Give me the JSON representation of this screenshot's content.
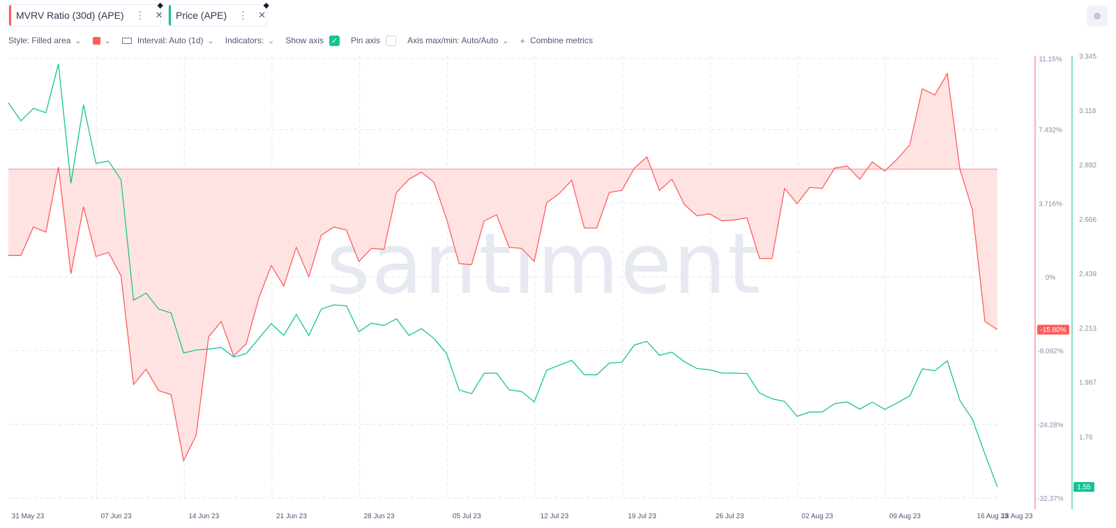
{
  "metrics": [
    {
      "label": "MVRV Ratio (30d) (APE)",
      "color": "#ff5b5b"
    },
    {
      "label": "Price (APE)",
      "color": "#14c393"
    }
  ],
  "toolbar": {
    "style_label": "Style: Filled area",
    "interval_label": "Interval: Auto (1d)",
    "indicators_label": "Indicators:",
    "show_axis_label": "Show axis",
    "pin_axis_label": "Pin axis",
    "axis_maxmin_label": "Axis max/min: Auto/Auto",
    "combine_label": "Combine metrics"
  },
  "watermark": "santiment",
  "chart_data": {
    "type": "line",
    "x_ticks": [
      "31 May 23",
      "07 Jun 23",
      "14 Jun 23",
      "21 Jun 23",
      "28 Jun 23",
      "05 Jul 23",
      "12 Jul 23",
      "19 Jul 23",
      "26 Jul 23",
      "02 Aug 23",
      "09 Aug 23",
      "16 Aug 23",
      "18 Aug 23"
    ],
    "series": [
      {
        "name": "MVRV Ratio (30d) (APE)",
        "style": "filled-area",
        "color": "#ff5b5b",
        "unit": "%",
        "axis": "left",
        "ylim": [
          -32.37,
          11.15
        ],
        "ticks": [
          "11.15%",
          "7.432%",
          "3.716%",
          "0%",
          "-8.092%",
          "-24.28%",
          "-32.37%"
        ],
        "last_value_label": "-15.80%",
        "values": [
          -8.5,
          -8.5,
          -5.7,
          -6.2,
          0.2,
          -10.3,
          -3.7,
          -8.6,
          -8.2,
          -10.5,
          -21.2,
          -19.7,
          -21.8,
          -22.2,
          -28.7,
          -26.2,
          -16.5,
          -15.0,
          -18.4,
          -17.2,
          -12.7,
          -9.5,
          -11.5,
          -7.7,
          -10.6,
          -6.5,
          -5.7,
          -6.0,
          -9.1,
          -7.8,
          -7.9,
          -2.3,
          -1.0,
          -0.3,
          -1.3,
          -4.9,
          -9.3,
          -9.4,
          -5.1,
          -4.5,
          -7.7,
          -7.8,
          -9.1,
          -3.3,
          -2.4,
          -1.1,
          -5.8,
          -5.8,
          -2.3,
          -2.1,
          0.1,
          1.2,
          -2.1,
          -1.0,
          -3.5,
          -4.6,
          -4.4,
          -5.1,
          -5.0,
          -4.8,
          -8.8,
          -8.8,
          -1.9,
          -3.4,
          -1.8,
          -1.9,
          0.1,
          0.3,
          -1.0,
          0.7,
          -0.2,
          1.0,
          2.4,
          7.9,
          7.3,
          9.4,
          0.0,
          -4.0,
          -15.0,
          -15.8
        ]
      },
      {
        "name": "Price (APE)",
        "style": "line",
        "color": "#14c393",
        "axis": "right",
        "ylim": [
          1.504,
          3.345
        ],
        "ticks": [
          "3.345",
          "3.118",
          "2.892",
          "2.666",
          "2.439",
          "2.213",
          "1.987",
          "1.76"
        ],
        "last_value_label": "1.55",
        "values": [
          3.15,
          3.074,
          3.126,
          3.108,
          3.311,
          2.814,
          3.141,
          2.897,
          2.907,
          2.829,
          2.327,
          2.357,
          2.291,
          2.274,
          2.108,
          2.12,
          2.124,
          2.131,
          2.091,
          2.105,
          2.168,
          2.23,
          2.181,
          2.268,
          2.181,
          2.291,
          2.308,
          2.304,
          2.196,
          2.232,
          2.222,
          2.25,
          2.181,
          2.209,
          2.168,
          2.106,
          1.954,
          1.938,
          2.023,
          2.024,
          1.954,
          1.947,
          1.904,
          2.036,
          2.057,
          2.077,
          2.017,
          2.017,
          2.066,
          2.069,
          2.141,
          2.156,
          2.098,
          2.111,
          2.071,
          2.043,
          2.038,
          2.024,
          2.024,
          2.022,
          1.941,
          1.917,
          1.906,
          1.844,
          1.862,
          1.862,
          1.897,
          1.904,
          1.874,
          1.903,
          1.873,
          1.9,
          1.929,
          2.042,
          2.034,
          2.075,
          1.91,
          1.832,
          1.687,
          1.55
        ]
      }
    ]
  }
}
